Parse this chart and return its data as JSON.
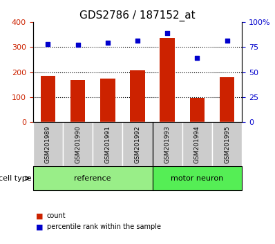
{
  "title": "GDS2786 / 187152_at",
  "samples": [
    "GSM201989",
    "GSM201990",
    "GSM201991",
    "GSM201992",
    "GSM201993",
    "GSM201994",
    "GSM201995"
  ],
  "bar_values": [
    185,
    168,
    175,
    207,
    335,
    97,
    180
  ],
  "scatter_values": [
    78,
    77,
    79,
    81,
    89,
    64,
    81
  ],
  "bar_color": "#cc2200",
  "scatter_color": "#0000cc",
  "left_ylim": [
    0,
    400
  ],
  "right_ylim": [
    0,
    100
  ],
  "left_yticks": [
    0,
    100,
    200,
    300,
    400
  ],
  "right_yticks": [
    0,
    25,
    50,
    75,
    100
  ],
  "right_yticklabels": [
    "0",
    "25",
    "50",
    "75",
    "100%"
  ],
  "groups": [
    {
      "label": "reference",
      "indices": [
        0,
        1,
        2,
        3
      ],
      "color": "#99ee88"
    },
    {
      "label": "motor neuron",
      "indices": [
        4,
        5,
        6
      ],
      "color": "#55ee55"
    }
  ],
  "cell_type_label": "cell type",
  "legend_bar_label": "count",
  "legend_scatter_label": "percentile rank within the sample",
  "tick_area_color": "#cccccc",
  "bar_width": 0.5
}
